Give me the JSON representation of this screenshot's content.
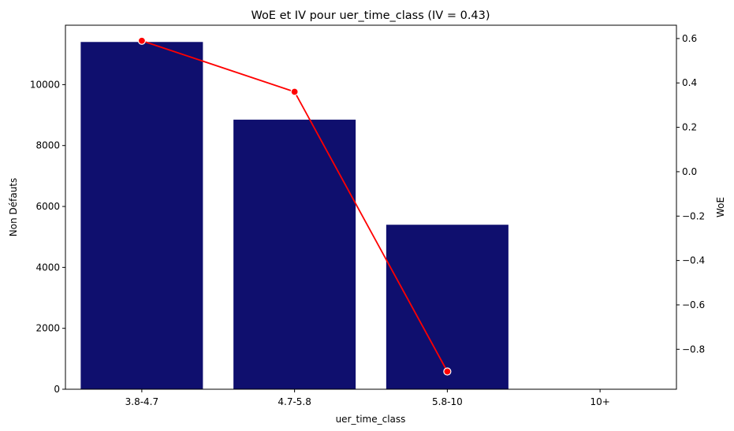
{
  "chart_data": {
    "type": "bar",
    "title": "WoE et IV pour uer_time_class (IV = 0.43)",
    "xlabel": "uer_time_class",
    "ylabel": "Non Défauts",
    "y2label": "WoE",
    "categories": [
      "3.8-4.7",
      "4.7-5.8",
      "5.8-10",
      "10+"
    ],
    "bar_series": {
      "name": "Non Défauts",
      "color": "#0f0f6e",
      "values": [
        11400,
        8850,
        5400,
        0
      ]
    },
    "line_series": {
      "name": "WoE",
      "color": "#ff0000",
      "values": [
        0.59,
        0.36,
        -0.9,
        null
      ]
    },
    "ylim": [
      0,
      11950
    ],
    "y2lim": [
      -0.98,
      0.66
    ],
    "yticks": [
      0,
      2000,
      4000,
      6000,
      8000,
      10000
    ],
    "y2ticks": [
      -0.8,
      -0.6,
      -0.4,
      -0.2,
      0.0,
      0.2,
      0.4,
      0.6
    ],
    "y2tick_labels": [
      "−0.8",
      "−0.6",
      "−0.4",
      "−0.2",
      "0.0",
      "0.2",
      "0.4",
      "0.6"
    ],
    "grid": false,
    "y2label_color": "#ff0000"
  }
}
